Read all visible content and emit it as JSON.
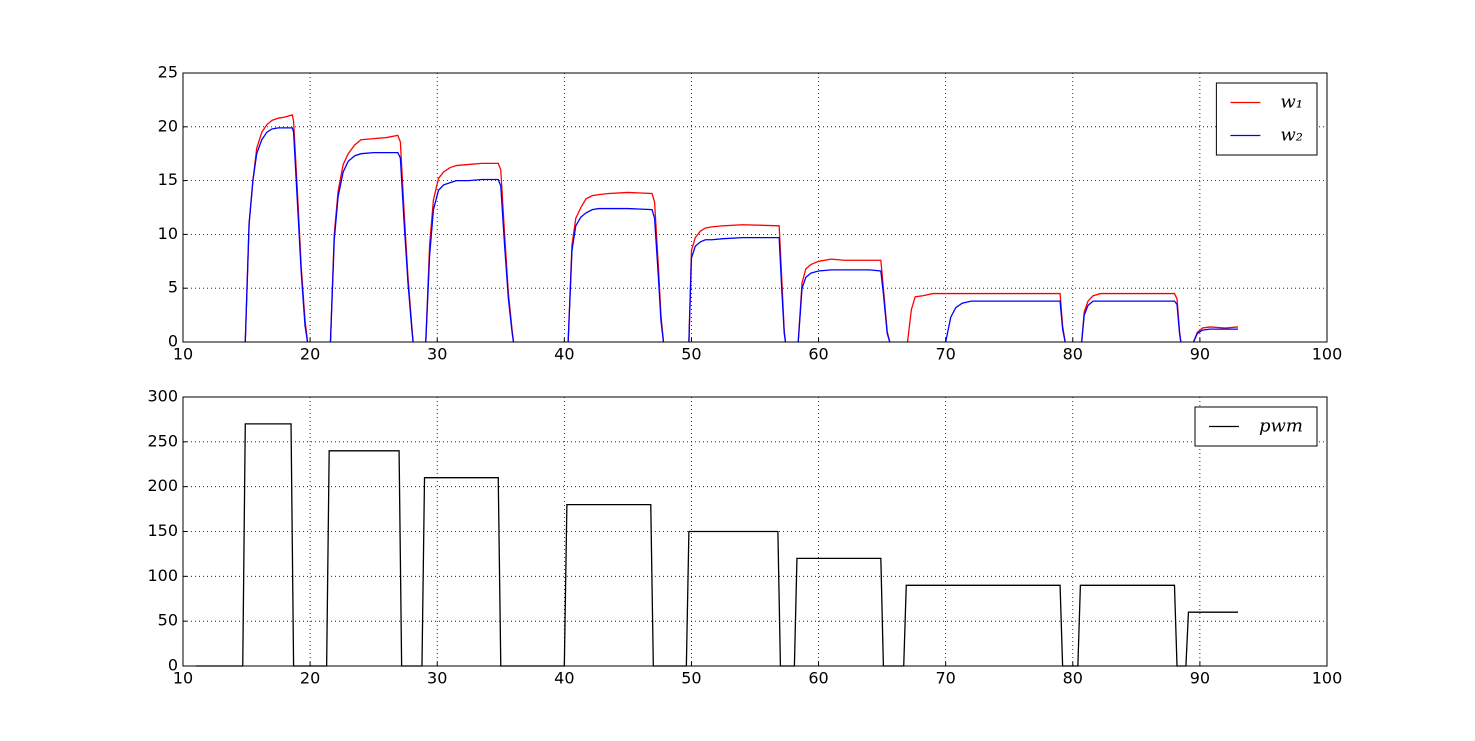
{
  "chart_data": [
    {
      "type": "line",
      "xlim": [
        10,
        100
      ],
      "ylim": [
        0,
        25
      ],
      "xticks": [
        10,
        20,
        30,
        40,
        50,
        60,
        70,
        80,
        90,
        100
      ],
      "yticks": [
        0,
        5,
        10,
        15,
        20,
        25
      ],
      "grid": true,
      "legend": "upper right",
      "x": [
        14.9,
        15.2,
        15.5,
        15.8,
        16.2,
        16.6,
        17,
        17.5,
        18,
        18.6,
        18.7,
        19.0,
        19.3,
        19.6,
        19.8,
        20.5,
        21.6,
        21.9,
        22.2,
        22.6,
        23,
        23.5,
        24,
        25,
        26,
        26.9,
        27.1,
        27.4,
        27.7,
        28.0,
        28.1,
        28.5,
        29.1,
        29.4,
        29.7,
        30.1,
        30.5,
        31,
        31.5,
        32.5,
        33.5,
        34.8,
        35.0,
        35.3,
        35.6,
        35.9,
        36.0,
        38,
        40.3,
        40.6,
        40.9,
        41.3,
        41.7,
        42.2,
        42.7,
        43.5,
        45,
        46.9,
        47.1,
        47.4,
        47.6,
        47.8,
        48.8,
        49.8,
        50.0,
        50.3,
        50.7,
        51.1,
        51.6,
        52.5,
        54,
        56.9,
        57.1,
        57.3,
        57.4,
        57.8,
        58.4,
        58.7,
        59.0,
        59.4,
        60,
        61,
        62,
        64,
        64.9,
        65.1,
        65.4,
        65.6,
        66.3,
        67.0,
        67.3,
        67.6,
        68.2,
        69,
        70.0,
        70.4,
        70.8,
        71.3,
        72,
        75,
        79.0,
        79.2,
        79.4,
        80.0,
        80.7,
        80.9,
        81.2,
        81.6,
        82.2,
        84,
        88.0,
        88.2,
        88.4,
        88.5,
        89,
        89.5,
        89.8,
        90.2,
        90.8,
        92,
        93
      ],
      "series": [
        {
          "name": "w₁",
          "color": "#ff0000",
          "values": [
            0,
            11,
            15,
            18,
            19.5,
            20.2,
            20.6,
            20.8,
            20.9,
            21.1,
            20.5,
            14,
            7,
            2,
            0,
            null,
            0,
            10,
            14,
            16.5,
            17.5,
            18.3,
            18.8,
            18.9,
            19.0,
            19.2,
            18.6,
            12,
            6,
            1.5,
            0,
            null,
            0,
            9,
            13.2,
            15.2,
            15.8,
            16.2,
            16.4,
            16.5,
            16.6,
            16.6,
            16.0,
            10,
            4.5,
            1,
            0,
            null,
            0,
            9,
            11.5,
            12.5,
            13.3,
            13.6,
            13.7,
            13.8,
            13.9,
            13.8,
            13.0,
            7,
            2.5,
            0,
            null,
            0,
            8.5,
            9.7,
            10.3,
            10.6,
            10.7,
            10.8,
            10.9,
            10.8,
            6,
            1,
            0,
            null,
            0,
            5.5,
            6.8,
            7.2,
            7.5,
            7.7,
            7.6,
            7.6,
            7.6,
            5,
            1,
            0,
            null,
            0,
            3,
            4.2,
            4.3,
            4.5,
            4.5,
            4.5,
            4.5,
            4.5,
            4.5,
            4.5,
            4.5,
            1.5,
            0,
            null,
            0,
            2.8,
            3.8,
            4.3,
            4.5,
            4.5,
            4.5,
            4.0,
            1,
            0,
            null,
            0,
            0.9,
            1.3,
            1.4,
            1.3,
            1.4
          ]
        },
        {
          "name": "w₂",
          "color": "#0000ff",
          "values": [
            0,
            11,
            15,
            17.5,
            18.8,
            19.5,
            19.8,
            19.9,
            19.9,
            19.9,
            19.5,
            13,
            6.5,
            1.5,
            0,
            null,
            0,
            9.5,
            13.5,
            15.8,
            16.8,
            17.3,
            17.5,
            17.6,
            17.6,
            17.6,
            17.1,
            11,
            5.5,
            1.2,
            0,
            null,
            0,
            8,
            12.3,
            14.1,
            14.6,
            14.8,
            15,
            15,
            15.1,
            15.1,
            14.5,
            9,
            4,
            0.8,
            0,
            null,
            0,
            8.5,
            10.8,
            11.6,
            12.0,
            12.3,
            12.4,
            12.4,
            12.4,
            12.3,
            11.5,
            6,
            2,
            0,
            null,
            0,
            7.8,
            8.9,
            9.3,
            9.5,
            9.5,
            9.6,
            9.7,
            9.7,
            5,
            0.8,
            0,
            null,
            0,
            5,
            6,
            6.4,
            6.6,
            6.7,
            6.7,
            6.7,
            6.6,
            4.5,
            0.8,
            0,
            null,
            null,
            null,
            null,
            null,
            null,
            0,
            2.3,
            3.2,
            3.6,
            3.8,
            3.8,
            3.8,
            1.2,
            0,
            null,
            0,
            2.5,
            3.4,
            3.8,
            3.8,
            3.8,
            3.8,
            3.5,
            0.8,
            0,
            null,
            0,
            0.8,
            1.1,
            1.2,
            1.2,
            1.2
          ]
        }
      ]
    },
    {
      "type": "line",
      "xlim": [
        10,
        100
      ],
      "ylim": [
        0,
        300
      ],
      "xticks": [
        10,
        20,
        30,
        40,
        50,
        60,
        70,
        80,
        90,
        100
      ],
      "yticks": [
        0,
        50,
        100,
        150,
        200,
        250,
        300
      ],
      "grid": true,
      "legend": "upper right",
      "x": [
        11,
        14.7,
        14.9,
        18.5,
        18.7,
        21.3,
        21.5,
        27.0,
        27.2,
        28.8,
        29.0,
        34.8,
        35.0,
        40.0,
        40.2,
        46.8,
        47.0,
        49.6,
        49.8,
        56.8,
        57.0,
        58.1,
        58.3,
        64.9,
        65.1,
        66.7,
        66.9,
        79.0,
        79.2,
        80.4,
        80.6,
        88.0,
        88.2,
        88.9,
        89.1,
        93.0
      ],
      "series": [
        {
          "name": "pwm",
          "color": "#000000",
          "values": [
            0,
            0,
            270,
            270,
            0,
            0,
            240,
            240,
            0,
            0,
            210,
            210,
            0,
            0,
            180,
            180,
            0,
            0,
            150,
            150,
            0,
            0,
            120,
            120,
            0,
            0,
            90,
            90,
            0,
            0,
            90,
            90,
            0,
            0,
            60,
            60
          ]
        }
      ]
    }
  ]
}
